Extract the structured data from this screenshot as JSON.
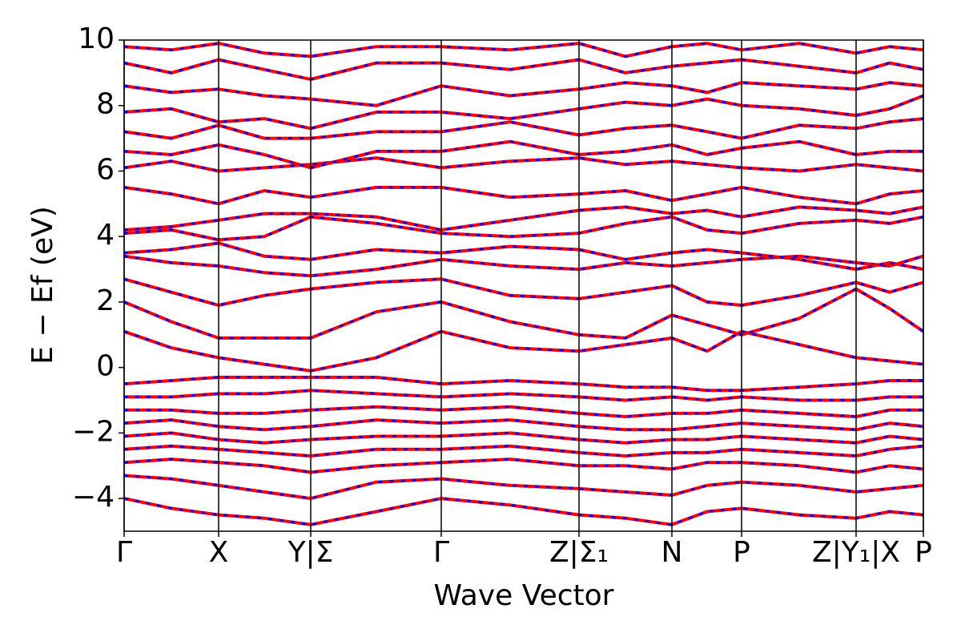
{
  "chart_data": {
    "type": "line",
    "xlabel": "Wave Vector",
    "ylabel": "E − Ef (eV)",
    "x": [
      0,
      0.59,
      1.18,
      1.75,
      2.33,
      3.15,
      3.96,
      4.82,
      5.68,
      6.26,
      6.84,
      7.28,
      7.71,
      8.43,
      9.14,
      9.56,
      9.98
    ],
    "xlim": [
      0,
      9.98
    ],
    "xticks": [
      {
        "value": 0,
        "label": "Γ"
      },
      {
        "value": 1.18,
        "label": "X"
      },
      {
        "value": 2.33,
        "label": "Y|Σ"
      },
      {
        "value": 3.96,
        "label": "Γ"
      },
      {
        "value": 5.68,
        "label": "Z|Σ₁"
      },
      {
        "value": 6.84,
        "label": "N"
      },
      {
        "value": 7.71,
        "label": "P"
      },
      {
        "value": 9.14,
        "label": "Z|Y₁|X"
      },
      {
        "value": 9.98,
        "label": "P"
      }
    ],
    "ylim": [
      -5,
      10
    ],
    "yticks": [
      {
        "value": -4,
        "label": "−4"
      },
      {
        "value": -2,
        "label": "−2"
      },
      0,
      2,
      4,
      6,
      8,
      10
    ],
    "color": "#ff0000",
    "dash_color": "#0000ff",
    "series": [
      {
        "values": [
          -4.0,
          -4.3,
          -4.5,
          -4.6,
          -4.8,
          -4.4,
          -4.0,
          -4.2,
          -4.5,
          -4.6,
          -4.8,
          -4.4,
          -4.3,
          -4.5,
          -4.6,
          -4.4,
          -4.5
        ]
      },
      {
        "values": [
          -3.3,
          -3.4,
          -3.6,
          -3.8,
          -4.0,
          -3.5,
          -3.4,
          -3.6,
          -3.7,
          -3.8,
          -3.9,
          -3.6,
          -3.5,
          -3.6,
          -3.8,
          -3.7,
          -3.6
        ]
      },
      {
        "values": [
          -2.9,
          -2.8,
          -2.9,
          -3.0,
          -3.2,
          -3.0,
          -2.9,
          -2.8,
          -3.0,
          -3.0,
          -3.1,
          -2.9,
          -2.9,
          -3.0,
          -3.2,
          -3.0,
          -3.1
        ]
      },
      {
        "values": [
          -2.5,
          -2.4,
          -2.5,
          -2.6,
          -2.7,
          -2.5,
          -2.5,
          -2.4,
          -2.6,
          -2.7,
          -2.6,
          -2.6,
          -2.5,
          -2.6,
          -2.7,
          -2.5,
          -2.4
        ]
      },
      {
        "values": [
          -2.1,
          -2.0,
          -2.2,
          -2.3,
          -2.2,
          -2.1,
          -2.1,
          -2.0,
          -2.2,
          -2.3,
          -2.2,
          -2.2,
          -2.1,
          -2.2,
          -2.3,
          -2.1,
          -2.2
        ]
      },
      {
        "values": [
          -1.7,
          -1.6,
          -1.8,
          -1.9,
          -1.8,
          -1.6,
          -1.7,
          -1.6,
          -1.8,
          -1.9,
          -1.9,
          -1.8,
          -1.7,
          -1.8,
          -1.9,
          -1.7,
          -1.8
        ]
      },
      {
        "values": [
          -1.3,
          -1.3,
          -1.4,
          -1.4,
          -1.3,
          -1.2,
          -1.3,
          -1.2,
          -1.4,
          -1.5,
          -1.4,
          -1.4,
          -1.3,
          -1.4,
          -1.5,
          -1.3,
          -1.3
        ]
      },
      {
        "values": [
          -0.9,
          -0.9,
          -0.8,
          -0.8,
          -0.7,
          -0.8,
          -0.9,
          -0.8,
          -0.9,
          -1.0,
          -0.9,
          -1.0,
          -0.9,
          -1.0,
          -1.0,
          -0.9,
          -0.9
        ]
      },
      {
        "values": [
          -0.5,
          -0.4,
          -0.3,
          -0.3,
          -0.3,
          -0.3,
          -0.5,
          -0.4,
          -0.5,
          -0.6,
          -0.6,
          -0.7,
          -0.7,
          -0.6,
          -0.5,
          -0.4,
          -0.4
        ]
      },
      {
        "values": [
          1.1,
          0.6,
          0.3,
          0.1,
          -0.1,
          0.3,
          1.1,
          0.6,
          0.5,
          0.7,
          0.9,
          0.5,
          1.1,
          0.7,
          0.3,
          0.2,
          0.1
        ]
      },
      {
        "values": [
          2.0,
          1.4,
          0.9,
          0.9,
          0.9,
          1.7,
          2.0,
          1.4,
          1.0,
          0.9,
          1.6,
          1.3,
          1.0,
          1.5,
          2.4,
          1.8,
          1.1
        ]
      },
      {
        "values": [
          2.7,
          2.3,
          1.9,
          2.2,
          2.4,
          2.6,
          2.7,
          2.2,
          2.1,
          2.3,
          2.5,
          2.0,
          1.9,
          2.2,
          2.6,
          2.3,
          2.6
        ]
      },
      {
        "values": [
          3.4,
          3.2,
          3.1,
          2.9,
          2.8,
          3.0,
          3.3,
          3.1,
          3.0,
          3.2,
          3.1,
          3.2,
          3.3,
          3.4,
          3.2,
          3.1,
          3.4
        ]
      },
      {
        "values": [
          3.5,
          3.6,
          3.8,
          3.4,
          3.3,
          3.6,
          3.5,
          3.7,
          3.6,
          3.3,
          3.5,
          3.6,
          3.5,
          3.3,
          3.0,
          3.2,
          3.0
        ]
      },
      {
        "values": [
          4.1,
          4.2,
          3.9,
          4.0,
          4.6,
          4.4,
          4.1,
          4.0,
          4.1,
          4.4,
          4.6,
          4.2,
          4.1,
          4.4,
          4.5,
          4.4,
          4.6
        ]
      },
      {
        "values": [
          4.2,
          4.3,
          4.5,
          4.7,
          4.7,
          4.6,
          4.2,
          4.5,
          4.8,
          4.9,
          4.7,
          4.8,
          4.6,
          4.9,
          4.8,
          4.7,
          4.9
        ]
      },
      {
        "values": [
          5.5,
          5.3,
          5.0,
          5.4,
          5.2,
          5.5,
          5.5,
          5.2,
          5.3,
          5.4,
          5.1,
          5.3,
          5.5,
          5.2,
          5.0,
          5.3,
          5.4
        ]
      },
      {
        "values": [
          6.1,
          6.3,
          6.0,
          6.1,
          6.2,
          6.4,
          6.1,
          6.3,
          6.4,
          6.2,
          6.3,
          6.2,
          6.1,
          6.0,
          6.2,
          6.1,
          6.0
        ]
      },
      {
        "values": [
          6.6,
          6.5,
          6.8,
          6.5,
          6.1,
          6.6,
          6.6,
          6.9,
          6.5,
          6.6,
          6.8,
          6.5,
          6.7,
          6.9,
          6.5,
          6.6,
          6.6
        ]
      },
      {
        "values": [
          7.2,
          7.0,
          7.4,
          7.0,
          7.0,
          7.2,
          7.2,
          7.5,
          7.1,
          7.3,
          7.4,
          7.2,
          7.0,
          7.4,
          7.3,
          7.5,
          7.6
        ]
      },
      {
        "values": [
          7.8,
          7.9,
          7.5,
          7.6,
          7.3,
          7.8,
          7.8,
          7.6,
          7.9,
          8.1,
          8.0,
          8.2,
          8.0,
          7.9,
          7.7,
          7.9,
          8.3
        ]
      },
      {
        "values": [
          8.6,
          8.4,
          8.5,
          8.3,
          8.2,
          8.0,
          8.6,
          8.3,
          8.5,
          8.7,
          8.6,
          8.4,
          8.7,
          8.6,
          8.5,
          8.7,
          8.6
        ]
      },
      {
        "values": [
          9.3,
          9.0,
          9.4,
          9.1,
          8.8,
          9.3,
          9.3,
          9.1,
          9.4,
          9.0,
          9.2,
          9.3,
          9.4,
          9.2,
          9.0,
          9.3,
          9.1
        ]
      },
      {
        "values": [
          9.8,
          9.7,
          9.9,
          9.6,
          9.5,
          9.8,
          9.8,
          9.7,
          9.9,
          9.5,
          9.8,
          9.9,
          9.7,
          9.9,
          9.6,
          9.8,
          9.7
        ]
      }
    ]
  }
}
